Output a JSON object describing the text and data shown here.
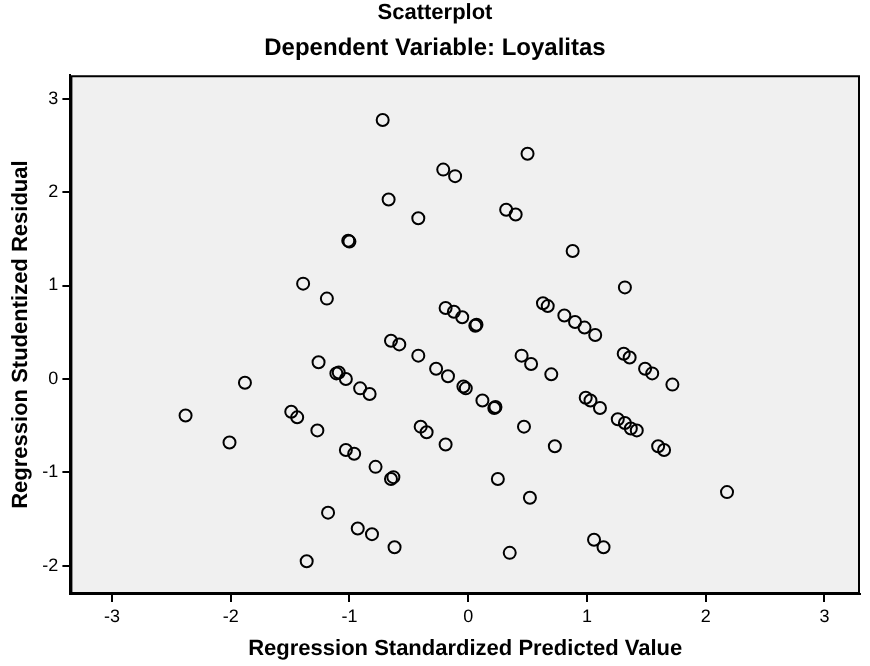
{
  "chart_data": {
    "type": "scatter",
    "title": "Scatterplot",
    "subtitle": "Dependent Variable: Loyalitas",
    "xlabel": "Regression Standardized Predicted Value",
    "ylabel": "Regression Studentized Residual",
    "x": [
      -0.72,
      -0.21,
      -0.11,
      0.5,
      -0.67,
      -0.42,
      0.32,
      0.4,
      -1.01,
      -1.0,
      0.88,
      -1.39,
      -1.19,
      1.32,
      -0.19,
      -0.12,
      -0.05,
      0.06,
      0.07,
      0.63,
      0.67,
      0.81,
      0.9,
      0.98,
      1.07,
      -0.65,
      -0.58,
      -0.42,
      -0.27,
      -0.17,
      -0.04,
      -0.02,
      0.12,
      0.22,
      0.23,
      0.45,
      0.53,
      0.7,
      1.31,
      1.36,
      1.49,
      1.55,
      1.72,
      -1.26,
      -1.11,
      -1.09,
      -1.03,
      -0.91,
      -0.83,
      -1.88,
      -2.38,
      -1.49,
      -1.44,
      -1.27,
      -2.01,
      -1.03,
      -0.96,
      -0.78,
      -0.65,
      -0.63,
      -1.18,
      -0.93,
      -0.81,
      -0.62,
      -1.36,
      -0.4,
      -0.35,
      -0.19,
      0.99,
      1.03,
      1.11,
      1.26,
      1.32,
      1.37,
      1.42,
      1.6,
      1.65,
      0.47,
      0.73,
      0.25,
      0.52,
      2.18,
      1.06,
      1.14,
      0.35
    ],
    "values": [
      2.77,
      2.24,
      2.17,
      2.41,
      1.92,
      1.72,
      1.81,
      1.76,
      1.48,
      1.47,
      1.37,
      1.02,
      0.86,
      0.98,
      0.76,
      0.72,
      0.66,
      0.57,
      0.58,
      0.81,
      0.78,
      0.68,
      0.61,
      0.55,
      0.47,
      0.41,
      0.37,
      0.25,
      0.11,
      0.03,
      -0.08,
      -0.1,
      -0.23,
      -0.31,
      -0.3,
      0.25,
      0.16,
      0.05,
      0.27,
      0.23,
      0.11,
      0.06,
      -0.06,
      0.18,
      0.06,
      0.07,
      0.0,
      -0.1,
      -0.16,
      -0.04,
      -0.39,
      -0.35,
      -0.41,
      -0.55,
      -0.68,
      -0.76,
      -0.8,
      -0.94,
      -1.07,
      -1.05,
      -1.43,
      -1.6,
      -1.66,
      -1.8,
      -1.95,
      -0.51,
      -0.57,
      -0.7,
      -0.2,
      -0.23,
      -0.31,
      -0.43,
      -0.47,
      -0.53,
      -0.55,
      -0.72,
      -0.76,
      -0.51,
      -0.72,
      -1.07,
      -1.27,
      -1.21,
      -1.72,
      -1.8,
      -1.86
    ],
    "color": "#000000",
    "marker": "circle",
    "xlim": [
      -3.35,
      3.3
    ],
    "ylim": [
      -2.3,
      3.25
    ],
    "xticks": [
      -3,
      -2,
      -1,
      0,
      1,
      2,
      3
    ],
    "yticks": [
      -2,
      -1,
      0,
      1,
      2,
      3
    ]
  }
}
